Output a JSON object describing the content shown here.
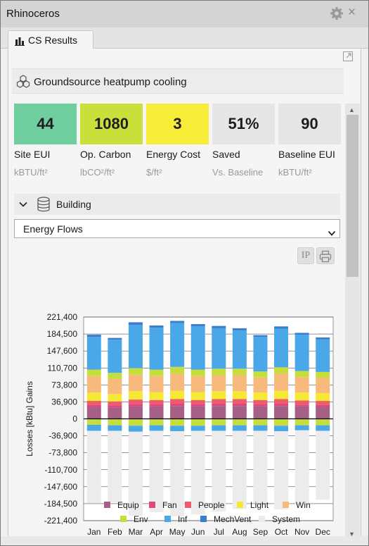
{
  "window": {
    "title": "Rhinoceros"
  },
  "tab": {
    "label": "CS Results"
  },
  "header": {
    "title": "Groundsource heatpump cooling"
  },
  "kpis": [
    {
      "value": "44",
      "label": "Site EUI",
      "unit": "kBTU/ft²",
      "color": "#6fcf9f"
    },
    {
      "value": "1080",
      "label": "Op. Carbon",
      "unit": "lbCO²/ft²",
      "color": "#c9e03a"
    },
    {
      "value": "3",
      "label": "Energy Cost",
      "unit": "$/ft²",
      "color": "#f7ec38"
    },
    {
      "value": "51%",
      "label": "Saved",
      "unit": "Vs. Baseline",
      "color": "#e6e6e6"
    },
    {
      "value": "90",
      "label": "Baseline EUI",
      "unit": "kBTU/ft²",
      "color": "#e6e6e6"
    }
  ],
  "section": {
    "label": "Building"
  },
  "dropdown": {
    "selected": "Energy Flows"
  },
  "toolbar": {
    "units_label": "IP"
  },
  "icons": {
    "gear": "gear-icon",
    "close": "close-icon",
    "tab": "bar-chart-icon",
    "expand": "expand-icon",
    "header": "hexagons-icon",
    "section": "database-icon",
    "chevron": "chevron-down-icon",
    "print": "printer-icon"
  },
  "chart_data": {
    "type": "bar",
    "stacked": true,
    "ylabel": "Losses  [kBtu]  Gains",
    "ylim": [
      -221400,
      221400
    ],
    "y_ticks": [
      "221,400",
      "184,500",
      "147,600",
      "110,700",
      "73,800",
      "36,900",
      "0",
      "-36,900",
      "-73,800",
      "-110,700",
      "-147,600",
      "-184,500",
      "-221,400"
    ],
    "categories": [
      "Jan",
      "Feb",
      "Mar",
      "Apr",
      "May",
      "Jun",
      "Jul",
      "Aug",
      "Sep",
      "Oct",
      "Nov",
      "Dec"
    ],
    "series": [
      {
        "name": "Equip",
        "color": "#a65f86",
        "values": [
          26000,
          25000,
          27000,
          27000,
          28000,
          27000,
          28000,
          28000,
          27000,
          28000,
          27000,
          26000
        ]
      },
      {
        "name": "Fan",
        "color": "#e0457f",
        "values": [
          4000,
          4000,
          5000,
          5000,
          5000,
          5000,
          5000,
          5000,
          5000,
          5000,
          4000,
          4000
        ]
      },
      {
        "name": "People",
        "color": "#ec5c6a",
        "values": [
          9000,
          9000,
          10000,
          9000,
          10000,
          9000,
          10000,
          10000,
          9000,
          10000,
          9000,
          9000
        ]
      },
      {
        "name": "Light",
        "color": "#f5e934",
        "values": [
          18000,
          16000,
          18000,
          17000,
          18000,
          17000,
          17000,
          17000,
          16000,
          18000,
          17000,
          17000
        ]
      },
      {
        "name": "Win",
        "color": "#f8ba7c",
        "values": [
          36000,
          33000,
          36000,
          35000,
          37000,
          35000,
          35000,
          35000,
          33000,
          37000,
          34000,
          33000
        ]
      },
      {
        "name": "Env",
        "color": "#c6de3c",
        "values": [
          14000,
          13000,
          14000,
          14000,
          15000,
          14000,
          14000,
          14000,
          13000,
          14000,
          13000,
          13000
        ]
      },
      {
        "name": "Inf",
        "color": "#4ba8e8",
        "values": [
          71000,
          72000,
          94000,
          91000,
          95000,
          94000,
          88000,
          83000,
          75000,
          84000,
          79000,
          71000
        ]
      },
      {
        "name": "MechVent",
        "color": "#3a7fcf",
        "values": [
          5000,
          4000,
          6000,
          5000,
          5000,
          5000,
          5000,
          5000,
          4000,
          5000,
          4000,
          4000
        ]
      },
      {
        "name": "Env",
        "color": "#c6de3c",
        "values": [
          -13000,
          -14000,
          -15000,
          -14000,
          -15000,
          -15000,
          -14000,
          -14000,
          -14000,
          -15000,
          -14000,
          -14000
        ]
      },
      {
        "name": "Inf",
        "color": "#4ba8e8",
        "values": [
          -13000,
          -12000,
          -13000,
          -12000,
          -12000,
          -11000,
          -12000,
          -12000,
          -12000,
          -12000,
          -11000,
          -12000
        ]
      },
      {
        "name": "System",
        "color": "#ececec",
        "values": [
          -158000,
          -156000,
          -183000,
          -177000,
          -185000,
          -182000,
          -176000,
          -170000,
          -158000,
          -170000,
          -162000,
          -150000
        ]
      }
    ],
    "legend": {
      "position": "bottom",
      "items": [
        {
          "name": "Equip",
          "color": "#a65f86"
        },
        {
          "name": "Fan",
          "color": "#e0457f"
        },
        {
          "name": "People",
          "color": "#ec5c6a"
        },
        {
          "name": "Light",
          "color": "#f5e934"
        },
        {
          "name": "Win",
          "color": "#f8ba7c"
        },
        {
          "name": "Env",
          "color": "#c6de3c"
        },
        {
          "name": "Inf",
          "color": "#4ba8e8"
        },
        {
          "name": "MechVent",
          "color": "#3a7fcf"
        },
        {
          "name": "System",
          "color": "#ececec"
        }
      ]
    },
    "grid": true
  }
}
